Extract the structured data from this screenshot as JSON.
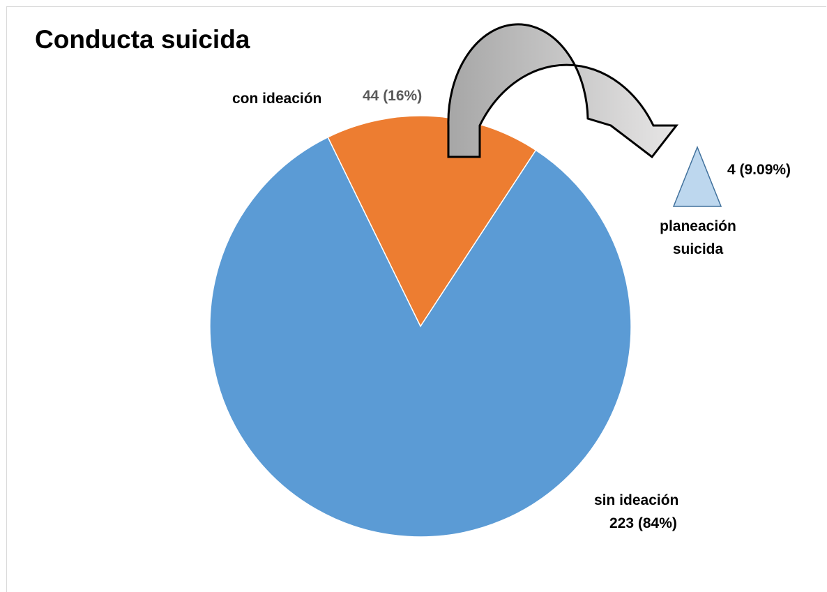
{
  "chart_data": {
    "type": "pie",
    "title": "Conducta suicida",
    "slices": [
      {
        "name": "sin ideación",
        "value": 223,
        "percent_label": "223 (84%)",
        "color": "#5b9bd5"
      },
      {
        "name": "con ideación",
        "value": 44,
        "percent_label": "44 (16%)",
        "color": "#ed7d31"
      }
    ],
    "sub_group": {
      "parent": "con ideación",
      "name_line1": "planeación",
      "name_line2": "suicida",
      "value": 4,
      "percent_label": "4 (9.09%)",
      "color": "#bdd7ee"
    }
  },
  "colors": {
    "value_label_muted": "#595959",
    "arrow_dark": "#a6a6a6",
    "arrow_light": "#e7e6e6"
  }
}
